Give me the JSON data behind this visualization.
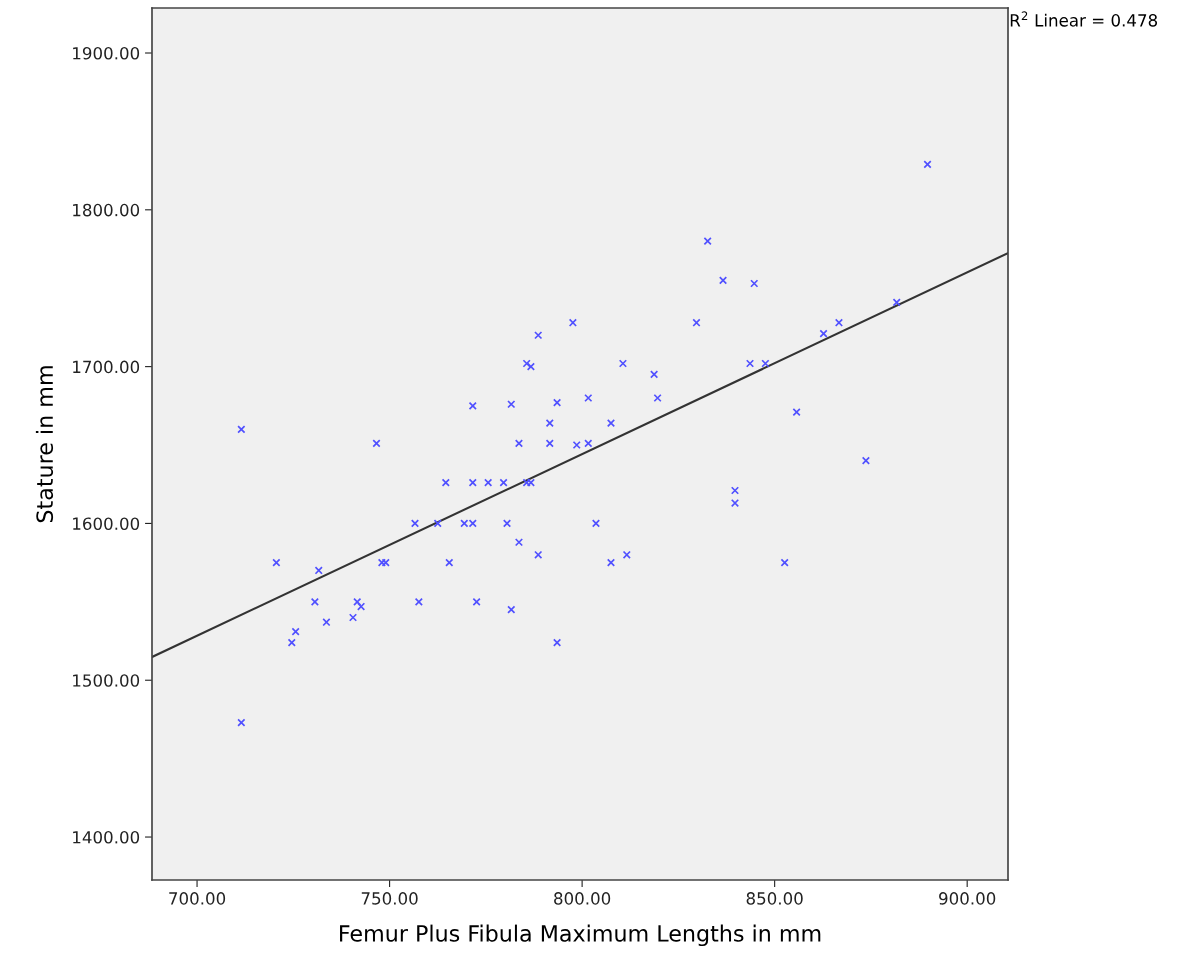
{
  "chart_data": {
    "type": "scatter",
    "xlabel": "Femur Plus Fibula Maximum Lengths in mm",
    "ylabel": "Stature in mm",
    "annotations": [
      "R$^{2}$ Linear = 0.478"
    ],
    "xlim": [
      688.3,
      910.6
    ],
    "ylim": [
      1372.6,
      1928.7
    ],
    "xticks": [
      {
        "value": 700,
        "label": "700.00"
      },
      {
        "value": 750,
        "label": "750.00"
      },
      {
        "value": 800,
        "label": "800.00"
      },
      {
        "value": 850,
        "label": "850.00"
      },
      {
        "value": 900,
        "label": "900.00"
      }
    ],
    "yticks": [
      {
        "value": 1400,
        "label": "1400.00"
      },
      {
        "value": 1500,
        "label": "1500.00"
      },
      {
        "value": 1600,
        "label": "1600.00"
      },
      {
        "value": 1700,
        "label": "1700.00"
      },
      {
        "value": 1800,
        "label": "1800.00"
      },
      {
        "value": 1900,
        "label": "1900.00"
      }
    ],
    "grid": false,
    "legend": false,
    "series": [
      {
        "marker": "cross",
        "color": "#5050ff",
        "x": [
          711.5,
          711.5,
          720.6,
          724.6,
          725.6,
          730.6,
          731.6,
          733.6,
          740.5,
          741.6,
          742.6,
          746.6,
          748.0,
          749.0,
          756.6,
          757.6,
          762.5,
          764.6,
          765.5,
          769.4,
          771.6,
          771.6,
          771.6,
          772.6,
          775.6,
          779.6,
          780.5,
          781.6,
          781.6,
          783.6,
          783.6,
          785.6,
          786.7,
          785.6,
          786.7,
          788.6,
          788.6,
          791.6,
          791.6,
          793.5,
          793.5,
          797.6,
          798.6,
          801.6,
          801.6,
          803.6,
          807.5,
          807.5,
          810.6,
          811.6,
          818.7,
          819.6,
          829.7,
          832.6,
          836.6,
          839.7,
          839.7,
          843.6,
          844.7,
          847.6,
          852.6,
          855.7,
          862.7,
          866.7,
          873.7,
          881.7,
          889.7
        ],
        "values": [
          1660,
          1473,
          1575,
          1524,
          1531,
          1550,
          1570,
          1537,
          1540,
          1550,
          1547,
          1651,
          1575,
          1575,
          1600,
          1550,
          1600,
          1626,
          1575,
          1600,
          1600,
          1626,
          1675,
          1550,
          1626,
          1626,
          1600,
          1676,
          1545,
          1651,
          1588,
          1702,
          1700,
          1626,
          1626,
          1720,
          1580,
          1664,
          1651,
          1677,
          1524,
          1728,
          1650,
          1680,
          1651,
          1600,
          1664,
          1575,
          1702,
          1580,
          1695,
          1680,
          1728,
          1780,
          1755,
          1621,
          1613,
          1702,
          1753,
          1702,
          1575,
          1671,
          1721,
          1728,
          1640,
          1741,
          1829
        ]
      },
      {
        "type": "line",
        "marker": "none",
        "line_style": "solid",
        "color": "#333333",
        "x": [
          688.3,
          910.6
        ],
        "values": [
          1514.8,
          1772.4
        ]
      }
    ]
  }
}
